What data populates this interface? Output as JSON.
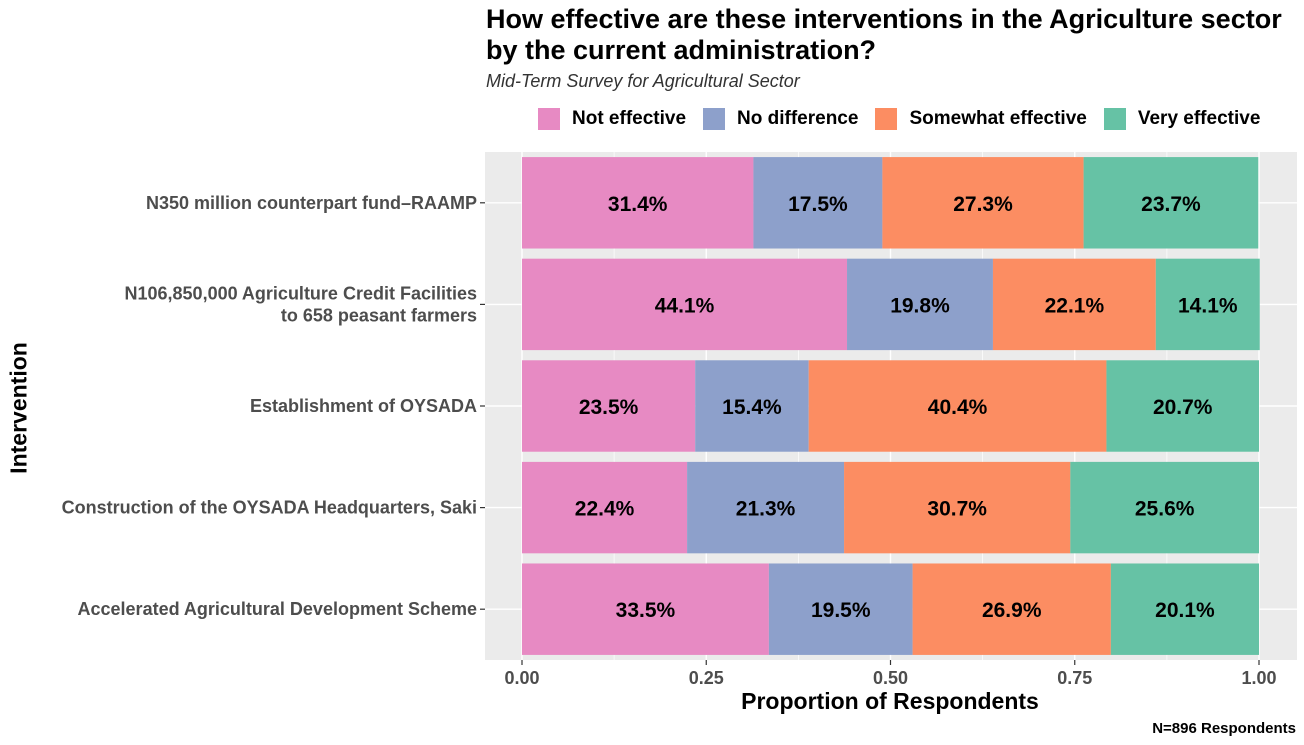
{
  "chart_data": {
    "type": "bar",
    "orientation": "horizontal",
    "stacked": true,
    "title": "How effective are these interventions in the Agriculture sector by the current administration?",
    "subtitle": "Mid-Term Survey for Agricultural Sector",
    "xlabel": "Proportion of Respondents",
    "ylabel": "Intervention",
    "caption": "N=896 Respondents",
    "xlim": [
      0,
      1
    ],
    "xticks": [
      "0.00",
      "0.25",
      "0.50",
      "0.75",
      "1.00"
    ],
    "grid": true,
    "legend_position": "top",
    "categories": [
      "N350 million counterpart fund–RAAMP",
      "N106,850,000 Agriculture Credit Facilities\nto 658 peasant farmers",
      "Establishment of OYSADA",
      "Construction of the OYSADA Headquarters, Saki",
      "Accelerated Agricultural Development Scheme"
    ],
    "series": [
      {
        "name": "Not effective",
        "color": "#E78AC3",
        "values": [
          0.314,
          0.441,
          0.235,
          0.224,
          0.335
        ],
        "labels": [
          "31.4%",
          "44.1%",
          "23.5%",
          "22.4%",
          "33.5%"
        ]
      },
      {
        "name": "No difference",
        "color": "#8DA0CB",
        "values": [
          0.175,
          0.198,
          0.154,
          0.213,
          0.195
        ],
        "labels": [
          "17.5%",
          "19.8%",
          "15.4%",
          "21.3%",
          "19.5%"
        ]
      },
      {
        "name": "Somewhat effective",
        "color": "#FC8D62",
        "values": [
          0.273,
          0.221,
          0.404,
          0.307,
          0.269
        ],
        "labels": [
          "27.3%",
          "22.1%",
          "40.4%",
          "30.7%",
          "26.9%"
        ]
      },
      {
        "name": "Very effective",
        "color": "#66C2A5",
        "values": [
          0.237,
          0.141,
          0.207,
          0.256,
          0.201
        ],
        "labels": [
          "23.7%",
          "14.1%",
          "20.7%",
          "25.6%",
          "20.1%"
        ]
      }
    ]
  }
}
